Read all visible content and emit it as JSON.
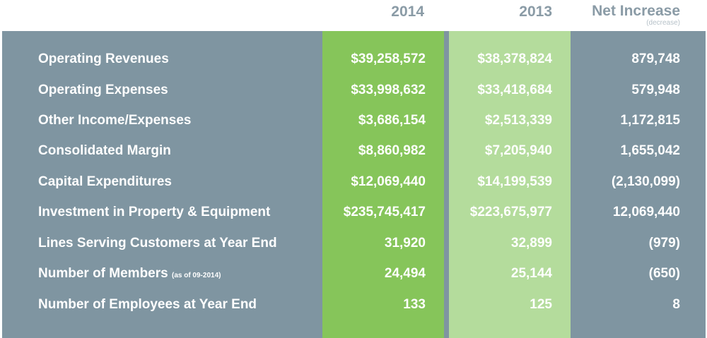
{
  "header": {
    "col_2014": "2014",
    "col_2013": "2013",
    "col_net": "Net Increase",
    "col_net_sub": "(decrease)"
  },
  "colors": {
    "panel": "#7f95a1",
    "col_2014": "#86c55a",
    "col_2013": "#b4dc9c",
    "header_text": "#8a9ba6"
  },
  "rows": [
    {
      "label": "Operating Revenues",
      "note": "",
      "y2014": "$39,258,572",
      "y2013": "$38,378,824",
      "net": "879,748"
    },
    {
      "label": "Operating Expenses",
      "note": "",
      "y2014": "$33,998,632",
      "y2013": "$33,418,684",
      "net": "579,948"
    },
    {
      "label": "Other Income/Expenses",
      "note": "",
      "y2014": "$3,686,154",
      "y2013": "$2,513,339",
      "net": "1,172,815"
    },
    {
      "label": "Consolidated Margin",
      "note": "",
      "y2014": "$8,860,982",
      "y2013": "$7,205,940",
      "net": "1,655,042"
    },
    {
      "label": "Capital Expenditures",
      "note": "",
      "y2014": "$12,069,440",
      "y2013": "$14,199,539",
      "net": "(2,130,099)"
    },
    {
      "label": "Investment in Property & Equipment",
      "note": "",
      "y2014": "$235,745,417",
      "y2013": "$223,675,977",
      "net": "12,069,440"
    },
    {
      "label": "Lines Serving Customers at Year End",
      "note": "",
      "y2014": "31,920",
      "y2013": "32,899",
      "net": "(979)"
    },
    {
      "label": "Number of Members",
      "note": "(as of 09-2014)",
      "y2014": "24,494",
      "y2013": "25,144",
      "net": "(650)"
    },
    {
      "label": "Number of Employees at Year End",
      "note": "",
      "y2014": "133",
      "y2013": "125",
      "net": "8"
    }
  ]
}
